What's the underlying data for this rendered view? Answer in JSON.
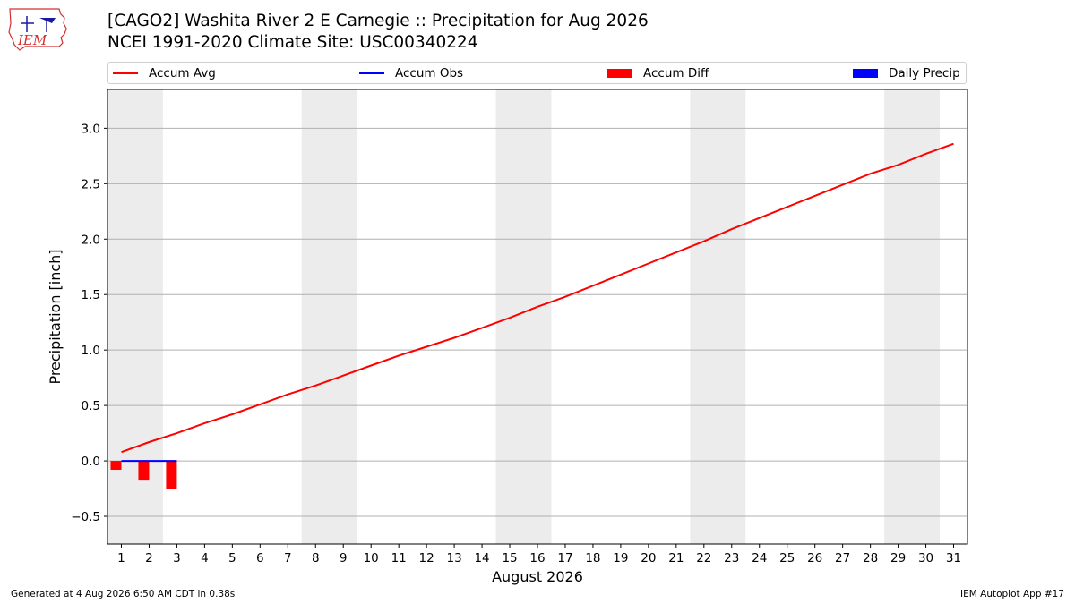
{
  "header": {
    "title_line1": "[CAGO2] Washita River 2 E Carnegie :: Precipitation for Aug 2026",
    "title_line2": "NCEI 1991-2020 Climate Site: USC00340224",
    "logo_text": "IEM"
  },
  "legend": [
    {
      "label": "Accum Avg",
      "color": "#ff0000",
      "kind": "line"
    },
    {
      "label": "Accum Obs",
      "color": "#0000ff",
      "kind": "line"
    },
    {
      "label": "Accum Diff",
      "color": "#ff0000",
      "kind": "box"
    },
    {
      "label": "Daily Precip",
      "color": "#0000ff",
      "kind": "box"
    }
  ],
  "footer": {
    "left": "Generated at 4 Aug 2026 6:50 AM CDT in 0.38s",
    "right": "IEM Autoplot App #17"
  },
  "chart_data": {
    "type": "line",
    "xlabel": "August 2026",
    "ylabel": "Precipitation [inch]",
    "x": [
      1,
      2,
      3,
      4,
      5,
      6,
      7,
      8,
      9,
      10,
      11,
      12,
      13,
      14,
      15,
      16,
      17,
      18,
      19,
      20,
      21,
      22,
      23,
      24,
      25,
      26,
      27,
      28,
      29,
      30,
      31
    ],
    "xlim": [
      0.5,
      31.5
    ],
    "ylim": [
      -0.75,
      3.35
    ],
    "yticks": [
      -0.5,
      0.0,
      0.5,
      1.0,
      1.5,
      2.0,
      2.5,
      3.0
    ],
    "ytick_labels": [
      "−0.5",
      "0.0",
      "0.5",
      "1.0",
      "1.5",
      "2.0",
      "2.5",
      "3.0"
    ],
    "grid": "horizontal",
    "weekend_shading": [
      [
        0.5,
        2.5
      ],
      [
        7.5,
        9.5
      ],
      [
        14.5,
        16.5
      ],
      [
        21.5,
        23.5
      ],
      [
        28.5,
        30.5
      ]
    ],
    "shading_color": "#ececec",
    "series": [
      {
        "name": "Accum Avg",
        "kind": "line",
        "color": "#ff0000",
        "x": [
          1,
          2,
          3,
          4,
          5,
          6,
          7,
          8,
          9,
          10,
          11,
          12,
          13,
          14,
          15,
          16,
          17,
          18,
          19,
          20,
          21,
          22,
          23,
          24,
          25,
          26,
          27,
          28,
          29,
          30,
          31
        ],
        "values": [
          0.08,
          0.17,
          0.25,
          0.34,
          0.42,
          0.51,
          0.6,
          0.68,
          0.77,
          0.86,
          0.95,
          1.03,
          1.11,
          1.2,
          1.29,
          1.39,
          1.48,
          1.58,
          1.68,
          1.78,
          1.88,
          1.98,
          2.09,
          2.19,
          2.29,
          2.39,
          2.49,
          2.59,
          2.67,
          2.77,
          2.86
        ]
      },
      {
        "name": "Accum Obs",
        "kind": "line",
        "color": "#0000ff",
        "x": [
          1,
          2,
          3
        ],
        "values": [
          0.0,
          0.0,
          0.0
        ]
      },
      {
        "name": "Accum Diff",
        "kind": "bar",
        "color": "#ff0000",
        "x": [
          1,
          2,
          3
        ],
        "values": [
          -0.08,
          -0.17,
          -0.25
        ]
      },
      {
        "name": "Daily Precip",
        "kind": "bar",
        "color": "#0000ff",
        "x": [
          1,
          2,
          3
        ],
        "values": [
          0.0,
          0.0,
          0.0
        ]
      }
    ]
  }
}
